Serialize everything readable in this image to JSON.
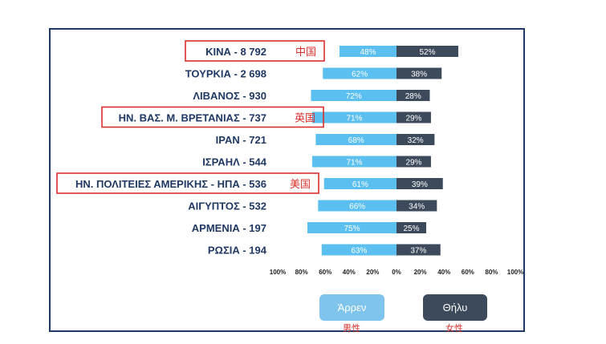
{
  "colors": {
    "male": "#5bbfef",
    "female": "#3d4a5c",
    "label_text": "#1f3864",
    "highlight": "#d9302c",
    "frame": "#1f3864"
  },
  "chart_data": {
    "type": "bar",
    "orientation": "horizontal-diverging",
    "categories": [
      "ΚΙΝΑ - 8 792",
      "ΤΟΥΡΚΙΑ - 2 698",
      "ΛΙΒΑΝΟΣ - 930",
      "ΗΝ. ΒΑΣ. Μ. ΒΡΕΤΑΝΙΑΣ - 737",
      "ΙΡΑΝ - 721",
      "ΙΣΡΑΗΛ - 544",
      "ΗΝ. ΠΟΛΙΤΕΙΕΣ ΑΜΕΡΙΚΗΣ - ΗΠΑ - 536",
      "ΑΙΓΥΠΤΟΣ - 532",
      "ΑΡΜΕΝΙΑ - 197",
      "ΡΩΣΙΑ - 194"
    ],
    "series": [
      {
        "name": "Άρρεν",
        "values": [
          48,
          62,
          72,
          71,
          68,
          71,
          61,
          66,
          75,
          63
        ]
      },
      {
        "name": "Θήλυ",
        "values": [
          52,
          38,
          28,
          29,
          32,
          29,
          39,
          34,
          25,
          37
        ]
      }
    ],
    "xlim": [
      -100,
      100
    ],
    "xticks": [
      "100%",
      "80%",
      "60%",
      "40%",
      "20%",
      "0%",
      "20%",
      "40%",
      "60%",
      "80%",
      "100%"
    ],
    "grid": false,
    "legend_placement": "bottom",
    "annotations": [
      {
        "category_index": 0,
        "text": "中国"
      },
      {
        "category_index": 3,
        "text": "英国"
      },
      {
        "category_index": 6,
        "text": "美国"
      }
    ]
  },
  "legend": {
    "male_label": "Άρρεν",
    "female_label": "Θήλυ",
    "male_note": "男性",
    "female_note": "女性"
  }
}
